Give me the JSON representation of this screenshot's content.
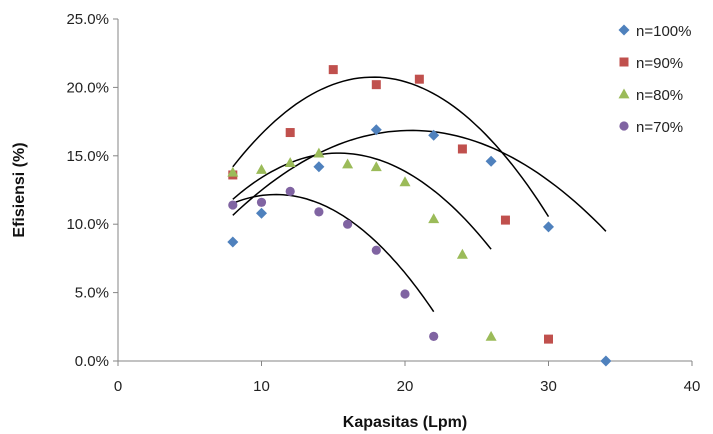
{
  "chart_data": {
    "type": "scatter",
    "title": "",
    "xlabel": "Kapasitas (Lpm)",
    "ylabel": "Efisiensi (%)",
    "xlim": [
      0,
      40
    ],
    "ylim": [
      0,
      25
    ],
    "x_ticks": [
      0,
      10,
      20,
      30,
      40
    ],
    "x_tick_labels": [
      "0",
      "10",
      "20",
      "30",
      "40"
    ],
    "y_ticks": [
      0,
      5,
      10,
      15,
      20,
      25
    ],
    "y_tick_labels": [
      "0.0%",
      "5.0%",
      "10.0%",
      "15.0%",
      "20.0%",
      "25.0%"
    ],
    "grid": false,
    "legend_position": "top-right",
    "trendline": "polynomial",
    "series": [
      {
        "name": "n=100%",
        "color": "#4f81bd",
        "marker": "diamond",
        "points": [
          [
            8,
            8.7
          ],
          [
            10,
            10.8
          ],
          [
            14,
            14.2
          ],
          [
            18,
            16.9
          ],
          [
            22,
            16.5
          ],
          [
            26,
            14.6
          ],
          [
            30,
            9.8
          ],
          [
            34,
            0.0
          ]
        ],
        "trend": [
          -0.0401,
          1.6394,
          0.1
        ]
      },
      {
        "name": "n=90%",
        "color": "#c0504d",
        "marker": "square",
        "points": [
          [
            8,
            13.6
          ],
          [
            12,
            16.7
          ],
          [
            15,
            21.3
          ],
          [
            18,
            20.2
          ],
          [
            21,
            20.6
          ],
          [
            24,
            15.5
          ],
          [
            27,
            10.3
          ],
          [
            30,
            1.6
          ]
        ],
        "trend": [
          -0.0684,
          2.4339,
          -0.9
        ]
      },
      {
        "name": "n=80%",
        "color": "#9bbb59",
        "marker": "triangle",
        "points": [
          [
            8,
            13.8
          ],
          [
            10,
            14.0
          ],
          [
            12,
            14.5
          ],
          [
            14,
            15.2
          ],
          [
            16,
            14.4
          ],
          [
            18,
            14.2
          ],
          [
            20,
            13.1
          ],
          [
            22,
            10.4
          ],
          [
            24,
            7.8
          ],
          [
            26,
            1.8
          ]
        ],
        "trend": [
          -0.0622,
          1.9122,
          0.5
        ]
      },
      {
        "name": "n=70%",
        "color": "#8064a2",
        "marker": "circle",
        "points": [
          [
            8,
            11.4
          ],
          [
            10,
            11.6
          ],
          [
            12,
            12.4
          ],
          [
            14,
            10.9
          ],
          [
            16,
            10.0
          ],
          [
            18,
            8.1
          ],
          [
            20,
            4.9
          ],
          [
            22,
            1.8
          ]
        ],
        "trend": [
          -0.0708,
          1.5577,
          3.6
        ]
      }
    ]
  }
}
